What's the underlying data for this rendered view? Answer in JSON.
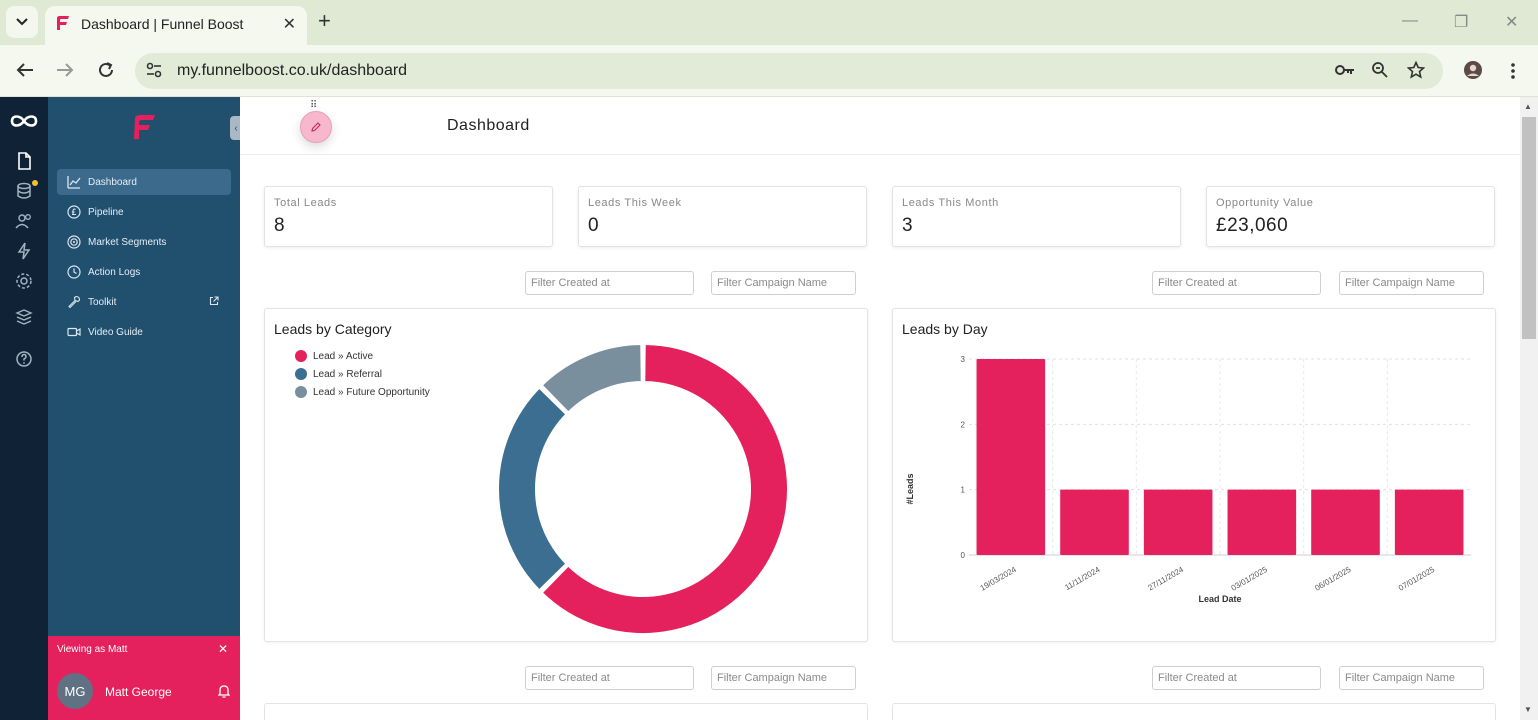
{
  "browser": {
    "tab_title": "Dashboard | Funnel Boost",
    "url": "my.funnelboost.co.uk/dashboard"
  },
  "sidebar": {
    "items": [
      {
        "label": "Dashboard",
        "icon": "chart-icon",
        "active": true
      },
      {
        "label": "Pipeline",
        "icon": "pound-icon",
        "active": false
      },
      {
        "label": "Market Segments",
        "icon": "target-icon",
        "active": false
      },
      {
        "label": "Action Logs",
        "icon": "history-icon",
        "active": false
      },
      {
        "label": "Toolkit",
        "icon": "wrench-icon",
        "active": false
      },
      {
        "label": "Video Guide",
        "icon": "video-icon",
        "active": false
      }
    ],
    "viewing_as": "Viewing as Matt",
    "user_initials": "MG",
    "user_name": "Matt George"
  },
  "page": {
    "title": "Dashboard"
  },
  "stats": [
    {
      "label": "Total Leads",
      "value": "8"
    },
    {
      "label": "Leads This Week",
      "value": "0"
    },
    {
      "label": "Leads This Month",
      "value": "3"
    },
    {
      "label": "Opportunity Value",
      "value": "£23,060"
    }
  ],
  "filters": {
    "created_placeholder": "Filter Created at",
    "campaign_placeholder": "Filter Campaign Name"
  },
  "colors": {
    "accent": "#e4215c",
    "sidebar": "#21506f",
    "rail": "#0f2236",
    "referral": "#3c6e91",
    "future": "#7a8f9e"
  },
  "chart_data": [
    {
      "type": "pie",
      "title": "Leads by Category",
      "categories": [
        "Lead » Active",
        "Lead » Referral",
        "Lead » Future Opportunity"
      ],
      "values": [
        5,
        2,
        1
      ],
      "colors": [
        "#e4215c",
        "#3c6e91",
        "#7a8f9e"
      ],
      "legend": "top-left"
    },
    {
      "type": "bar",
      "title": "Leads by Day",
      "categories": [
        "19/03/2024",
        "11/11/2024",
        "27/11/2024",
        "03/01/2025",
        "06/01/2025",
        "07/01/2025"
      ],
      "values": [
        3,
        1,
        1,
        1,
        1,
        1
      ],
      "xlabel": "Lead Date",
      "ylabel": "#Leads",
      "ylim": [
        0,
        3
      ],
      "yticks": [
        0,
        1,
        2,
        3
      ],
      "grid": true,
      "color": "#e4215c"
    }
  ]
}
